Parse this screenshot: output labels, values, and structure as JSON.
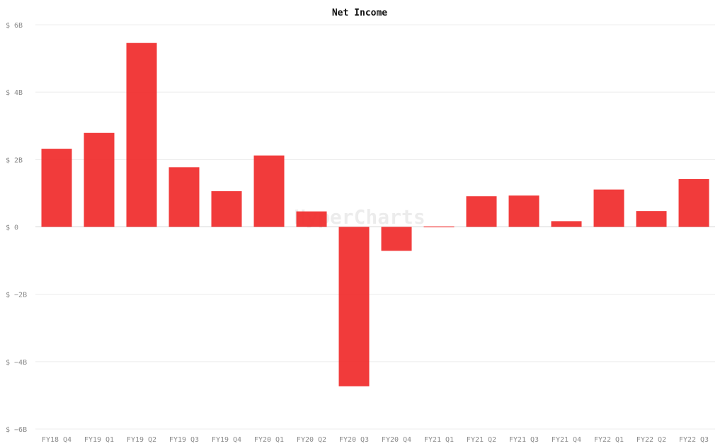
{
  "chart_data": {
    "type": "bar",
    "title": "Net Income",
    "xlabel": "",
    "ylabel": "",
    "categories": [
      "FY18 Q4",
      "FY19 Q1",
      "FY19 Q2",
      "FY19 Q3",
      "FY19 Q4",
      "FY20 Q1",
      "FY20 Q2",
      "FY20 Q3",
      "FY20 Q4",
      "FY21 Q1",
      "FY21 Q2",
      "FY21 Q3",
      "FY21 Q4",
      "FY22 Q1",
      "FY22 Q2",
      "FY22 Q3"
    ],
    "values": [
      2.32,
      2.79,
      5.46,
      1.77,
      1.06,
      2.12,
      0.46,
      -4.73,
      -0.71,
      -0.01,
      0.91,
      0.93,
      0.17,
      1.11,
      0.47,
      1.42
    ],
    "unit": "billion USD",
    "ylim": [
      -6,
      6
    ],
    "y_ticks": [
      6,
      4,
      2,
      0,
      -2,
      -4,
      -6
    ],
    "y_tick_labels": [
      "$ 6B",
      "$ 4B",
      "$ 2B",
      "$ 0",
      "$ −2B",
      "$ −4B",
      "$ −6B"
    ],
    "grid": true,
    "legend": "none",
    "bar_color": "#f03030",
    "watermark": "HyperCharts"
  }
}
